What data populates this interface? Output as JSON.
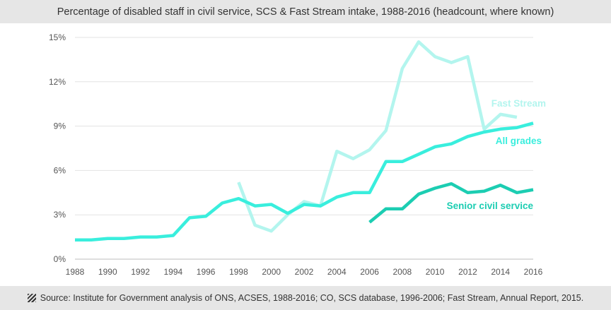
{
  "header": {
    "title": "Percentage of disabled staff in civil service, SCS & Fast Stream intake, 1988-2016 (headcount, where known)"
  },
  "footer": {
    "source": "Source: Institute for Government analysis of ONS, ACSES, 1988-2016; CO, SCS database, 1996-2006; Fast Stream, Annual Report, 2015.",
    "icon": "hatched-square-icon"
  },
  "chart_data": {
    "type": "line",
    "title": "Percentage of disabled staff in civil service, SCS & Fast Stream intake, 1988-2016 (headcount, where known)",
    "xlabel": "",
    "ylabel": "",
    "xlim": [
      1988,
      2016
    ],
    "ylim": [
      0,
      15
    ],
    "x_ticks": [
      "1988",
      "1990",
      "1992",
      "1994",
      "1996",
      "1998",
      "2000",
      "2002",
      "2004",
      "2006",
      "2008",
      "2010",
      "2012",
      "2014",
      "2016"
    ],
    "y_ticks": [
      "0%",
      "3%",
      "6%",
      "9%",
      "12%",
      "15%"
    ],
    "grid": "horizontal",
    "legend": "direct labels",
    "series": [
      {
        "name": "Fast Stream",
        "color": "#b3f5ee",
        "x": [
          1998,
          1999,
          2000,
          2001,
          2002,
          2003,
          2004,
          2005,
          2006,
          2007,
          2008,
          2009,
          2010,
          2011,
          2012,
          2013,
          2014,
          2015
        ],
        "y": [
          5.2,
          2.3,
          1.9,
          3.0,
          3.9,
          3.6,
          7.3,
          6.8,
          7.4,
          8.7,
          12.9,
          14.7,
          13.7,
          13.3,
          13.7,
          8.8,
          9.8,
          9.6
        ]
      },
      {
        "name": "All grades",
        "color": "#39eedd",
        "x": [
          1988,
          1989,
          1990,
          1991,
          1992,
          1993,
          1994,
          1995,
          1996,
          1997,
          1998,
          1999,
          2000,
          2001,
          2002,
          2003,
          2004,
          2005,
          2006,
          2007,
          2008,
          2009,
          2010,
          2011,
          2012,
          2013,
          2014,
          2015,
          2016
        ],
        "y": [
          1.3,
          1.3,
          1.4,
          1.4,
          1.5,
          1.5,
          1.6,
          2.8,
          2.9,
          3.8,
          4.1,
          3.6,
          3.7,
          3.1,
          3.7,
          3.6,
          4.2,
          4.5,
          4.5,
          6.6,
          6.6,
          7.1,
          7.6,
          7.8,
          8.3,
          8.6,
          8.8,
          8.9,
          9.2
        ]
      },
      {
        "name": "Senior civil service",
        "color": "#1ccdb2",
        "x": [
          2006,
          2007,
          2008,
          2009,
          2010,
          2011,
          2012,
          2013,
          2014,
          2015,
          2016
        ],
        "y": [
          2.5,
          3.4,
          3.4,
          4.4,
          4.8,
          5.1,
          4.5,
          4.6,
          5.0,
          4.5,
          4.7
        ]
      }
    ]
  }
}
